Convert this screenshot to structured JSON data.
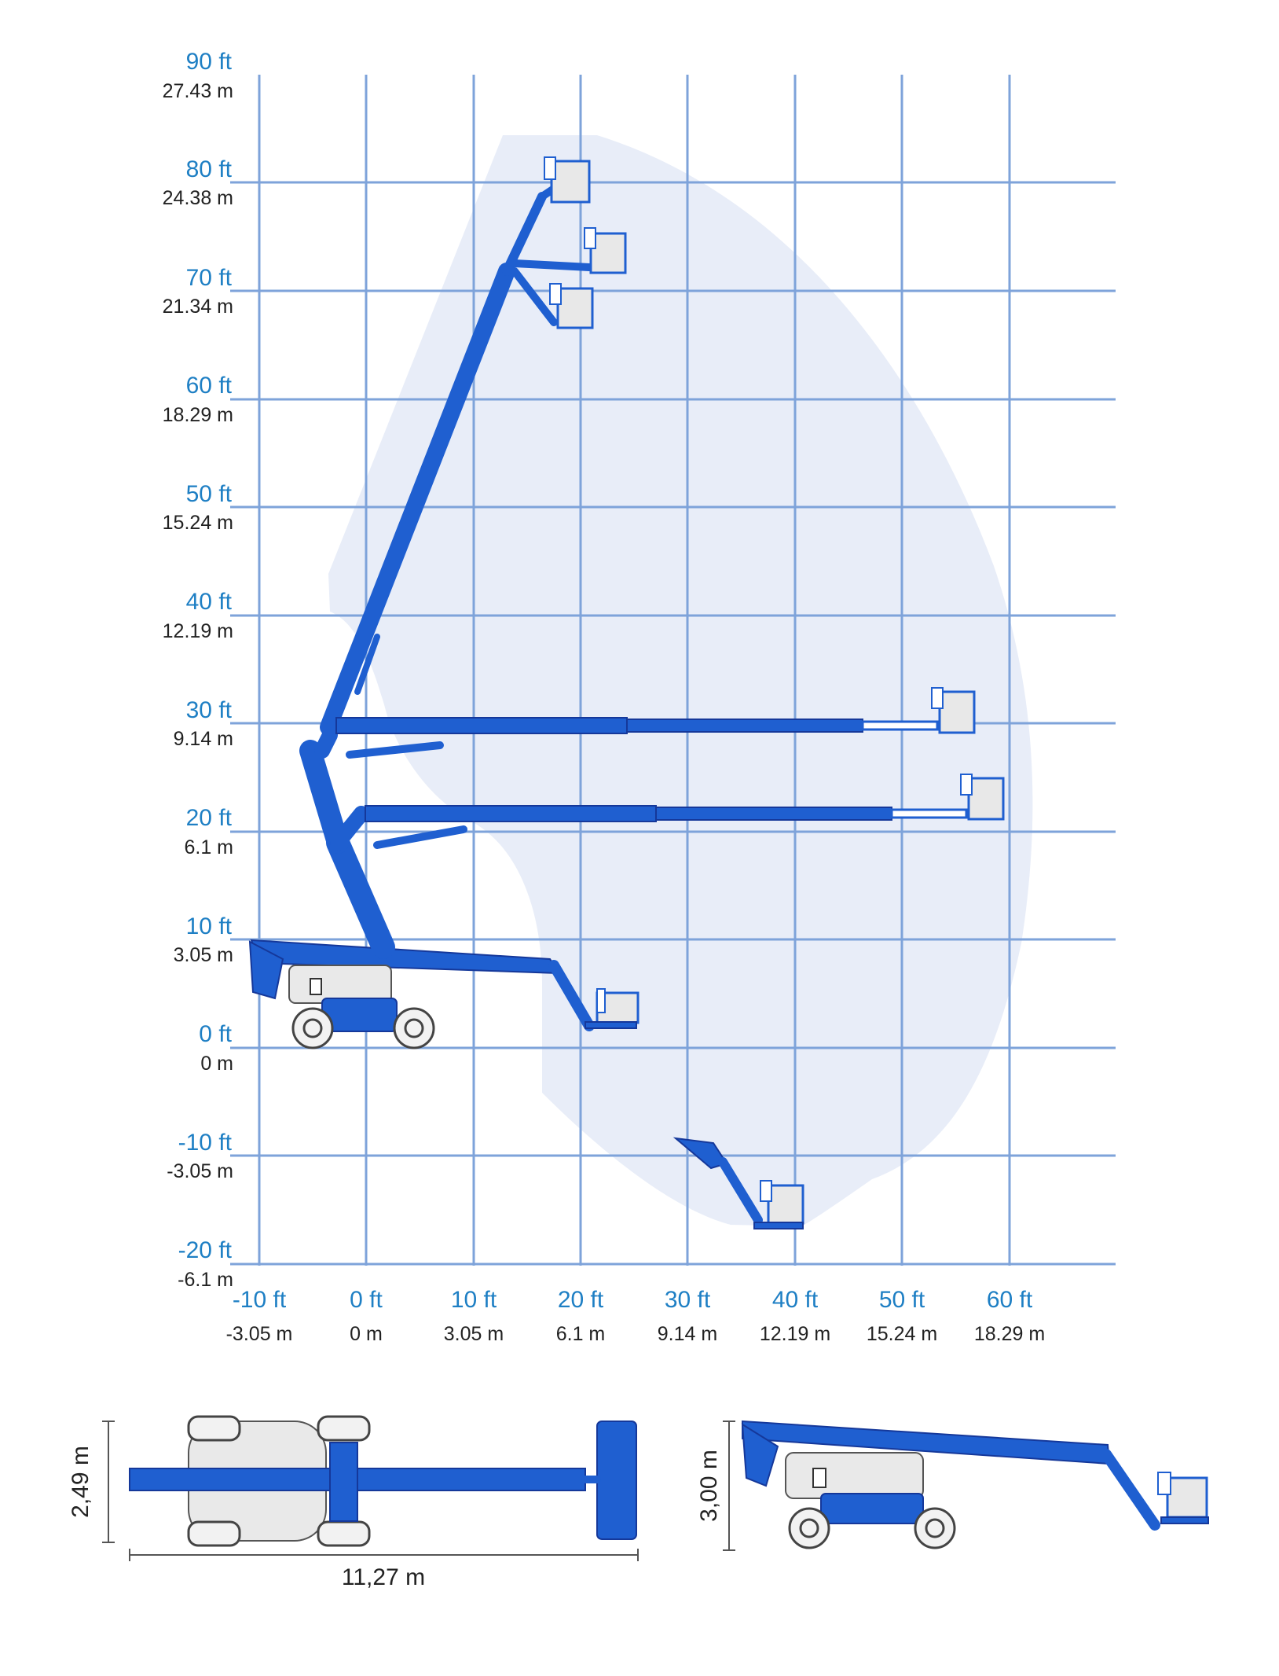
{
  "colors": {
    "envelope": "#e8edf8",
    "grid": "#7ea3da",
    "boom": "#1f5fd0",
    "ft_label": "#1e7fc4",
    "m_label": "#222222"
  },
  "working_range": {
    "y_axis": {
      "ft_labels": [
        "90 ft",
        "80 ft",
        "70 ft",
        "60 ft",
        "50 ft",
        "40 ft",
        "30 ft",
        "20 ft",
        "10 ft",
        "0 ft",
        "-10 ft",
        "-20 ft"
      ],
      "m_labels": [
        "27.43 m",
        "24.38 m",
        "21.34 m",
        "18.29 m",
        "15.24 m",
        "12.19 m",
        "9.14 m",
        "6.1 m",
        "3.05 m",
        "0 m",
        "-3.05 m",
        "-6.1 m"
      ]
    },
    "x_axis": {
      "ft_labels": [
        "-10 ft",
        "0 ft",
        "10 ft",
        "20 ft",
        "30 ft",
        "40 ft",
        "50 ft",
        "60 ft"
      ],
      "m_labels": [
        "-3.05 m",
        "0 m",
        "3.05 m",
        "6.1 m",
        "9.14 m",
        "12.19 m",
        "15.24 m",
        "18.29 m"
      ]
    }
  },
  "top_view": {
    "width_label": "2,49 m",
    "length_label": "11,27 m"
  },
  "side_view": {
    "height_label": "3,00 m"
  }
}
